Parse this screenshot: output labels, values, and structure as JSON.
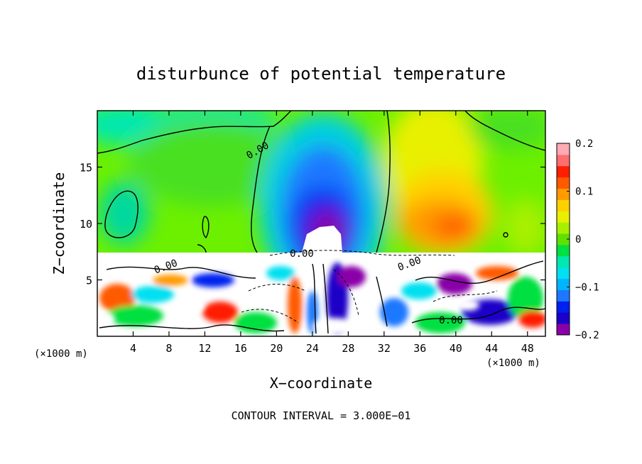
{
  "chart_data": {
    "type": "heatmap",
    "title": "disturbunce of potential temperature",
    "xlabel": "X−coordinate",
    "ylabel": "Z−coordinate",
    "x_unit_left": "(×1000 m)",
    "x_unit_right": "(×1000 m)",
    "xlim": [
      0,
      50
    ],
    "ylim": [
      0,
      20
    ],
    "x_ticks": [
      4,
      8,
      12,
      16,
      20,
      24,
      28,
      32,
      36,
      40,
      44,
      48
    ],
    "y_ticks": [
      5,
      10,
      15
    ],
    "colorbar": {
      "range": [
        -0.2,
        0.2
      ],
      "ticks": [
        "0.2",
        "0.1",
        "0",
        "−0.1",
        "−0.2"
      ],
      "colors": [
        "#8a00a8",
        "#1a00c8",
        "#0020f0",
        "#1e78ff",
        "#00b4ff",
        "#00e0f0",
        "#00e8b0",
        "#00e040",
        "#60e000",
        "#a8f000",
        "#e8f000",
        "#ffd000",
        "#ff9a00",
        "#ff5a00",
        "#ff1e00",
        "#ff6e6e",
        "#ffaab4"
      ]
    },
    "contour_labels": [
      "0.00",
      "0.00",
      "0.00",
      "0.00",
      "0.00"
    ],
    "annotation": "CONTOUR INTERVAL = 3.000E−01"
  }
}
